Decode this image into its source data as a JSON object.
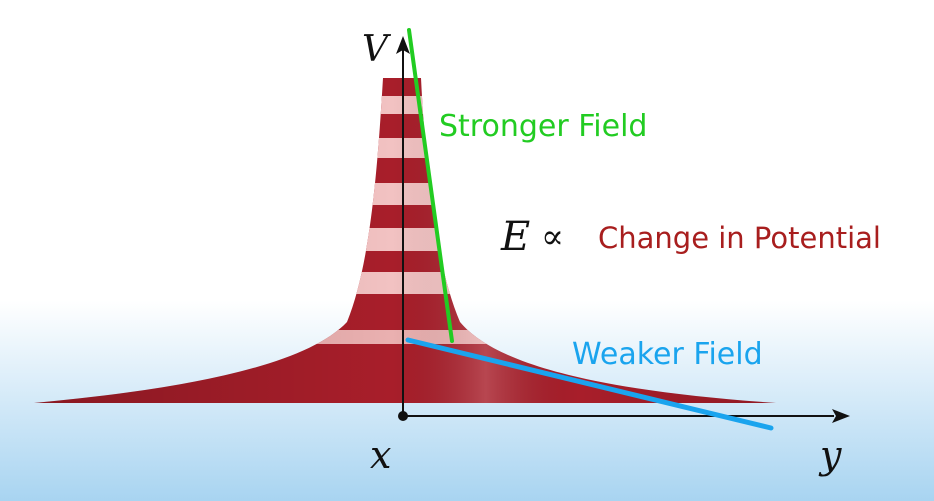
{
  "labels": {
    "v_axis": "V",
    "x_axis": "x",
    "y_axis": "y",
    "stronger": "Stronger Field",
    "weaker": "Weaker Field",
    "e_symbol": "E",
    "proportional": "∝",
    "change_text": "Change in Potential"
  },
  "colors": {
    "stronger": "#22cc22",
    "weaker": "#1aa4ee",
    "change_text": "#a81e1e",
    "surface_dark": "#a81e2a",
    "surface_light": "#f2c2c2"
  }
}
